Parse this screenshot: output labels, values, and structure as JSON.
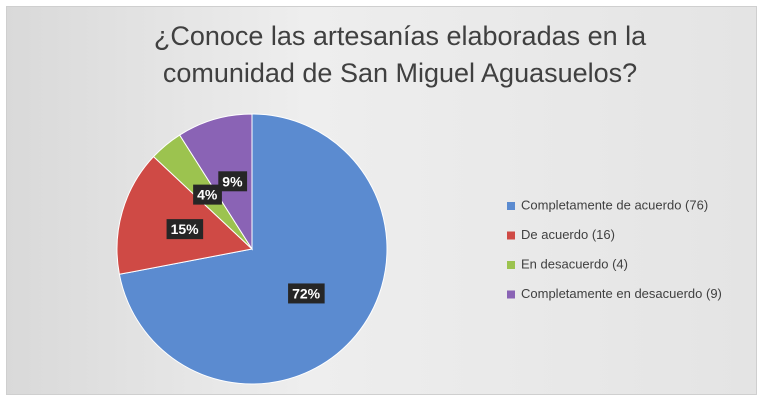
{
  "chart_data": {
    "type": "pie",
    "title": "¿Conoce las artesanías elaboradas en la comunidad de San Miguel Aguasuelos?",
    "categories": [
      "Completamente de acuerdo (76)",
      "De acuerdo (16)",
      "En desacuerdo (4)",
      "Completamente en desacuerdo (9)"
    ],
    "values": [
      72,
      15,
      4,
      9
    ],
    "value_labels": [
      "72%",
      "15%",
      "4%",
      "9%"
    ],
    "colors": [
      "#5b8bd0",
      "#cf4a45",
      "#9cc34f",
      "#8a63b5"
    ],
    "legend": "right"
  }
}
